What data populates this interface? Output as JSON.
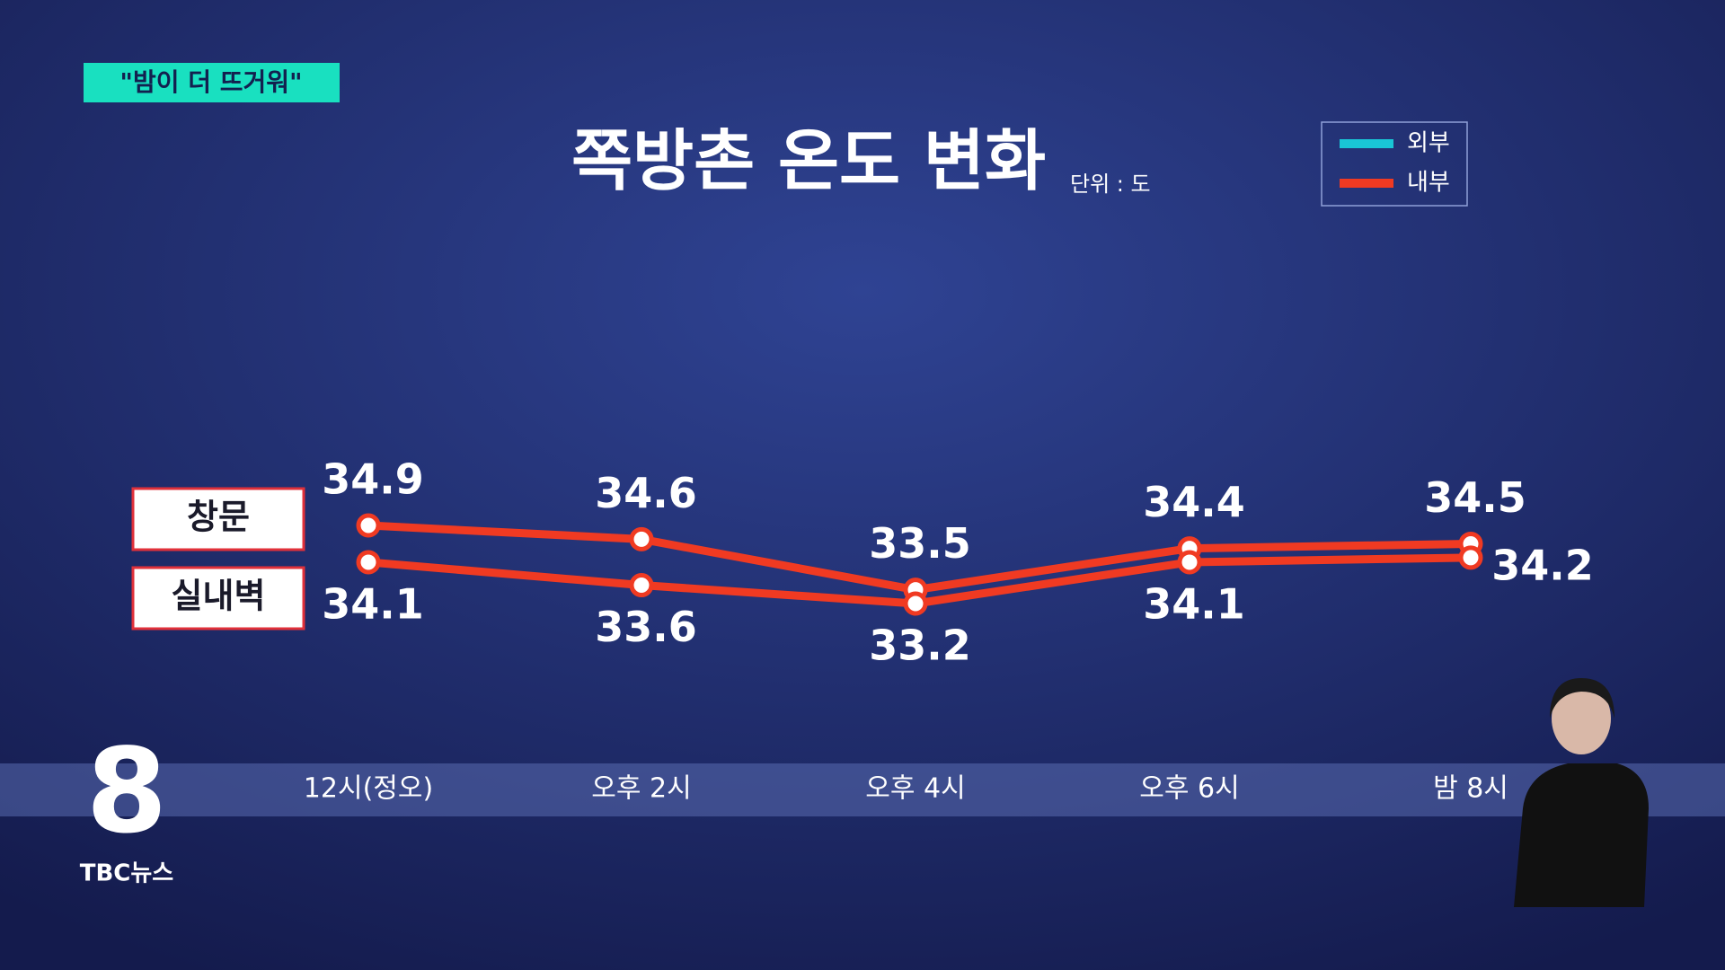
{
  "tag": "\"밤이 더 뜨거워\"",
  "logo": {
    "mark": "8",
    "name": "TBC뉴스"
  },
  "chart_data": {
    "type": "line",
    "title": "쪽방촌 온도 변화",
    "unit": "단위 : 도",
    "categories": [
      "12시(정오)",
      "오후 2시",
      "오후 4시",
      "오후 6시",
      "밤 8시"
    ],
    "legend": [
      {
        "label": "외부",
        "color": "#19c6d6"
      },
      {
        "label": "내부",
        "color": "#f03a22"
      }
    ],
    "series": [
      {
        "name": "창문",
        "color": "#f03a22",
        "values": [
          34.9,
          34.6,
          33.5,
          34.4,
          34.5
        ]
      },
      {
        "name": "실내벽",
        "color": "#f03a22",
        "values": [
          34.1,
          33.6,
          33.2,
          34.1,
          34.2
        ]
      }
    ]
  }
}
